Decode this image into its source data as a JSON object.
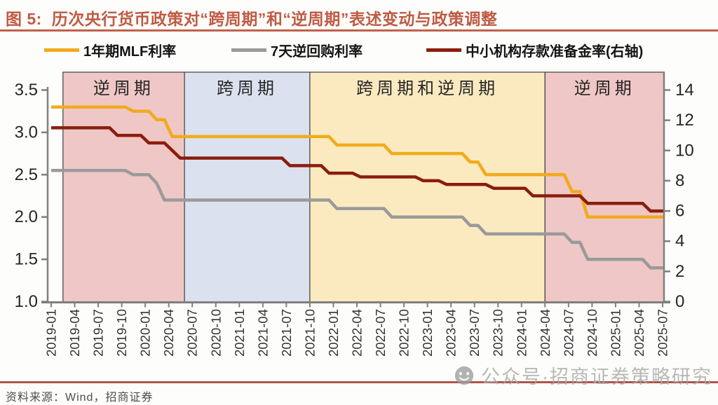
{
  "title": {
    "prefix": "图 5:",
    "text": "历次央行货币政策对“跨周期”和“逆周期”表述变动与政策调整"
  },
  "footer": {
    "source": "资料来源：Wind，招商证券"
  },
  "watermark": {
    "icon": "wechat-public-account-icon",
    "text": "公众号·招商证券策略研究"
  },
  "colors": {
    "accent": "#bf5b43",
    "axis": "#7f7f7f",
    "band_border": "#404040",
    "tick_text": "#262626",
    "x_tick_text": "#333333"
  },
  "chart_data": {
    "type": "line",
    "title": "历次央行货币政策对“跨周期”和“逆周期”表述变动与政策调整",
    "x_unit": "month",
    "x_start": "2019-01",
    "x_end": "2025-07",
    "x_total_months": 78,
    "x_tick_labels": [
      "2019-01",
      "2019-04",
      "2019-07",
      "2019-10",
      "2020-01",
      "2020-04",
      "2020-07",
      "2020-10",
      "2021-01",
      "2021-04",
      "2021-07",
      "2021-10",
      "2022-01",
      "2022-04",
      "2022-07",
      "2022-10",
      "2023-01",
      "2023-04",
      "2023-07",
      "2023-10",
      "2024-01",
      "2024-04",
      "2024-07",
      "2024-10",
      "2025-01",
      "2025-04",
      "2025-07"
    ],
    "left_axis": {
      "min": 1.0,
      "max": 3.5,
      "ticks": [
        3.5,
        3.0,
        2.5,
        2.0,
        1.5,
        1.0
      ]
    },
    "right_axis": {
      "min": 0,
      "max": 14,
      "ticks": [
        14,
        12,
        10,
        8,
        6,
        4,
        2,
        0
      ]
    },
    "grid": false,
    "legend_position": "top",
    "series": [
      {
        "id": "mlf-1y",
        "name": "1年期MLF利率",
        "axis": "left",
        "color": "#f1ab1b",
        "points_note": "[months_after_2019_01, percent] step changes",
        "points": [
          [
            0,
            3.3
          ],
          [
            10,
            3.25
          ],
          [
            13,
            3.15
          ],
          [
            15,
            2.95
          ],
          [
            36,
            2.85
          ],
          [
            43,
            2.75
          ],
          [
            53,
            2.65
          ],
          [
            55,
            2.5
          ],
          [
            66,
            2.3
          ],
          [
            68,
            2.0
          ],
          [
            78,
            2.0
          ]
        ]
      },
      {
        "id": "reverse-repo-7d",
        "name": "7天逆回购利率",
        "axis": "left",
        "color": "#9a9a9a",
        "points": [
          [
            0,
            2.55
          ],
          [
            10,
            2.5
          ],
          [
            13,
            2.4
          ],
          [
            14,
            2.2
          ],
          [
            36,
            2.1
          ],
          [
            43,
            2.0
          ],
          [
            53,
            1.9
          ],
          [
            55,
            1.8
          ],
          [
            66,
            1.7
          ],
          [
            68,
            1.5
          ],
          [
            76,
            1.4
          ],
          [
            78,
            1.4
          ]
        ]
      },
      {
        "id": "rrr-small-medium",
        "name": "中小机构存款准备金率(右轴)",
        "axis": "right",
        "color": "#8b1d0d",
        "points": [
          [
            0,
            11.5
          ],
          [
            8,
            11.0
          ],
          [
            12,
            10.5
          ],
          [
            15,
            10.0
          ],
          [
            16,
            9.5
          ],
          [
            30,
            9.0
          ],
          [
            35,
            8.5
          ],
          [
            39,
            8.25
          ],
          [
            47,
            8.0
          ],
          [
            50,
            7.75
          ],
          [
            56,
            7.5
          ],
          [
            61,
            7.0
          ],
          [
            68,
            6.5
          ],
          [
            76,
            6.0
          ],
          [
            78,
            6.0
          ]
        ]
      }
    ],
    "bands": [
      {
        "label": "逆周期",
        "start_month": 1.5,
        "end_month": 17,
        "color": "#eec7c6"
      },
      {
        "label": "跨周期",
        "start_month": 17,
        "end_month": 33,
        "color": "#dbe1ef"
      },
      {
        "label": "跨周期和逆周期",
        "start_month": 33,
        "end_month": 63,
        "color": "#fbeac0"
      },
      {
        "label": "逆周期",
        "start_month": 63,
        "end_month": 78.2,
        "color": "#eec7c6"
      }
    ]
  }
}
